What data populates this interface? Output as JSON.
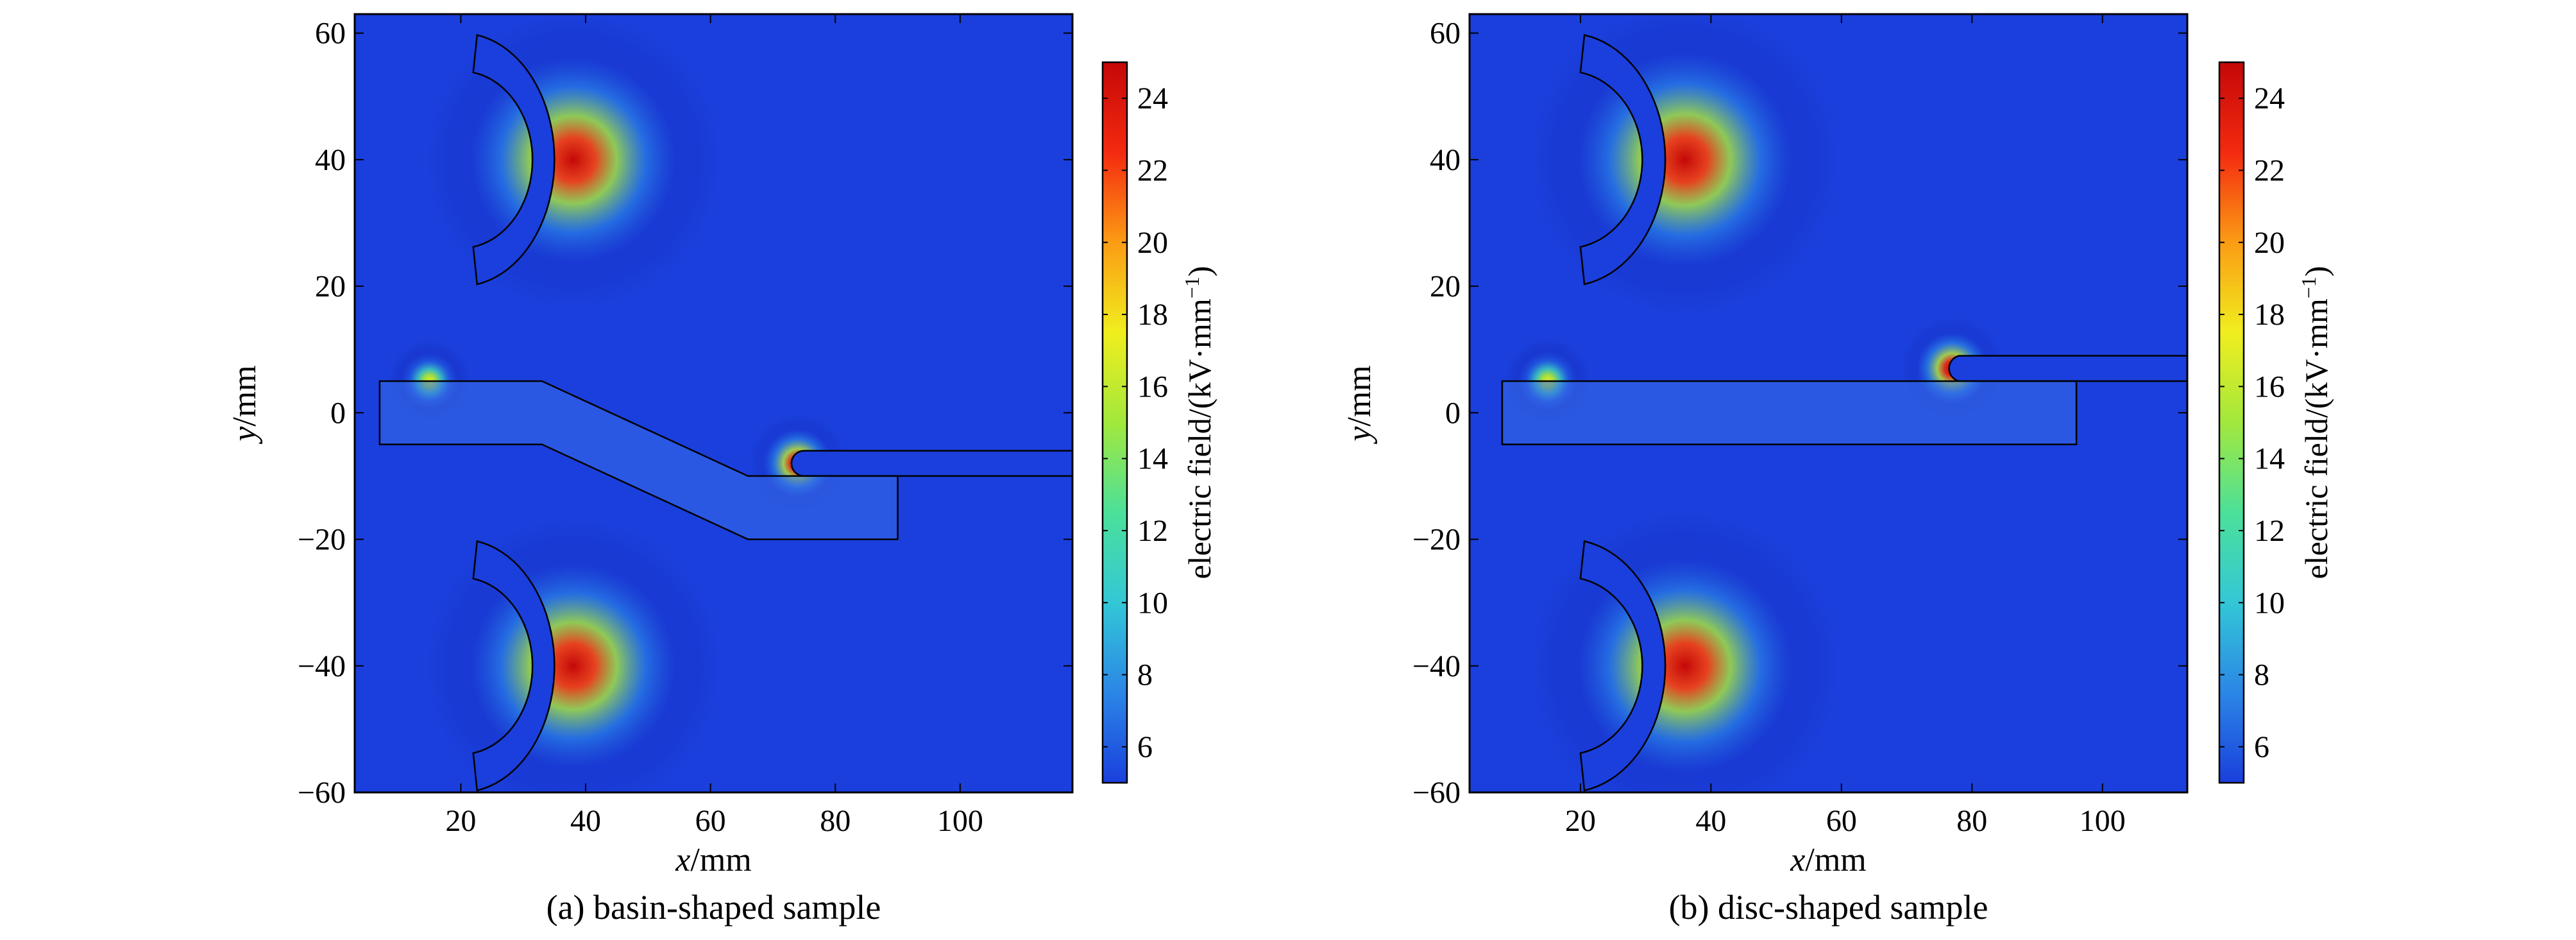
{
  "colors": {
    "background": "#1a3fdc",
    "outline": "#000000",
    "colormap": [
      "#10108a",
      "#1a3fdc",
      "#2b86e6",
      "#33c7d6",
      "#4ce09a",
      "#a2e83c",
      "#f0ee1e",
      "#fb9c14",
      "#f42a10",
      "#c40808"
    ]
  },
  "chart_data": [
    {
      "type": "heatmap",
      "caption": "(a) basin-shaped sample",
      "xlabel_var": "x",
      "xlabel_unit": "/mm",
      "ylabel_var": "y",
      "ylabel_unit": "/mm",
      "xlim": [
        3,
        118
      ],
      "ylim": [
        -60,
        63
      ],
      "xticks": [
        20,
        40,
        60,
        80,
        100
      ],
      "yticks": [
        -60,
        -40,
        -20,
        0,
        20,
        40,
        60
      ],
      "ytick_labels": [
        "−60",
        "−40",
        "−20",
        "0",
        "20",
        "40",
        "60"
      ],
      "colorbar": {
        "label": "electric field/(kV·mm",
        "label_exp": "−1",
        "label_close": ")",
        "range": [
          5,
          25
        ],
        "ticks": [
          6,
          8,
          10,
          12,
          14,
          16,
          18,
          20,
          22,
          24
        ]
      },
      "field_sources": [
        {
          "x": 38,
          "y": 40,
          "amplitude": 19,
          "spread": 9
        },
        {
          "x": 38,
          "y": -40,
          "amplitude": 19,
          "spread": 9
        },
        {
          "x": 74,
          "y": -8,
          "amplitude": 20,
          "spread": 3
        },
        {
          "x": 15,
          "y": 5,
          "amplitude": 12,
          "spread": 2.5
        }
      ],
      "peak_field": 25,
      "geometry": {
        "upper_electrode": {
          "center": [
            20,
            40
          ],
          "inner_radius": 14,
          "outer_radius": 20
        },
        "lower_electrode": {
          "center": [
            20,
            -40
          ],
          "inner_radius": 14,
          "outer_radius": 20
        },
        "conductor": {
          "x_start": 73,
          "x_end": 118,
          "y_top": -6,
          "y_bottom": -10
        },
        "insulator_outline": [
          [
            7,
            5
          ],
          [
            33,
            5
          ],
          [
            66,
            -10
          ],
          [
            90,
            -10
          ],
          [
            90,
            -20
          ],
          [
            66,
            -20
          ],
          [
            33,
            -5
          ],
          [
            7,
            -5
          ]
        ]
      }
    },
    {
      "type": "heatmap",
      "caption": "(b) disc-shaped sample",
      "xlabel_var": "x",
      "xlabel_unit": "/mm",
      "ylabel_var": "y",
      "ylabel_unit": "/mm",
      "xlim": [
        3,
        113
      ],
      "ylim": [
        -60,
        63
      ],
      "xticks": [
        20,
        40,
        60,
        80,
        100
      ],
      "yticks": [
        -60,
        -40,
        -20,
        0,
        20,
        40,
        60
      ],
      "ytick_labels": [
        "−60",
        "−40",
        "−20",
        "0",
        "20",
        "40",
        "60"
      ],
      "colorbar": {
        "label": "electric field/(kV·mm",
        "label_exp": "−1",
        "label_close": ")",
        "range": [
          5,
          25
        ],
        "ticks": [
          6,
          8,
          10,
          12,
          14,
          16,
          18,
          20,
          22,
          24
        ]
      },
      "field_sources": [
        {
          "x": 36,
          "y": 40,
          "amplitude": 19,
          "spread": 9
        },
        {
          "x": 36,
          "y": -40,
          "amplitude": 19,
          "spread": 9
        },
        {
          "x": 77,
          "y": 7,
          "amplitude": 20,
          "spread": 3
        },
        {
          "x": 15,
          "y": 5,
          "amplitude": 12,
          "spread": 2.5
        }
      ],
      "peak_field": 25,
      "geometry": {
        "upper_electrode": {
          "center": [
            18,
            40
          ],
          "inner_radius": 14,
          "outer_radius": 20
        },
        "lower_electrode": {
          "center": [
            18,
            -40
          ],
          "inner_radius": 14,
          "outer_radius": 20
        },
        "conductor": {
          "x_start": 76,
          "x_end": 113,
          "y_top": 9,
          "y_bottom": 5
        },
        "insulator_outline": [
          [
            8,
            5
          ],
          [
            96,
            5
          ],
          [
            96,
            -5
          ],
          [
            8,
            -5
          ]
        ]
      }
    }
  ]
}
